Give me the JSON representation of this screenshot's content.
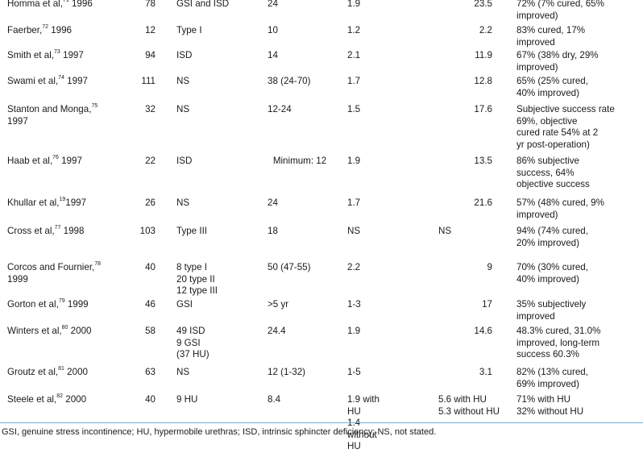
{
  "rows": [
    {
      "study": "Homma et al,",
      "ref": "71",
      "year": " 1996",
      "n": "78",
      "type": "GSI and ISD",
      "followup": "24",
      "mean1": "1.9",
      "mean2": "23.5",
      "outcome": "72% (7% cured, 65%\nimproved)"
    },
    {
      "study": "Faerber,",
      "ref": "72",
      "year": " 1996",
      "n": "12",
      "type": "Type I",
      "followup": "10",
      "mean1": "1.2",
      "mean2": "2.2",
      "outcome": "83% cured, 17%\nimproved"
    },
    {
      "study": "Smith et al,",
      "ref": "73",
      "year": " 1997",
      "n": "94",
      "type": "ISD",
      "followup": "14",
      "mean1": "2.1",
      "mean2": "11.9",
      "outcome": "67% (38% dry, 29%\nimproved)"
    },
    {
      "study": "Swami et al,",
      "ref": "74",
      "year": " 1997",
      "n": "111",
      "type": "NS",
      "followup": "38 (24-70)",
      "mean1": "1.7",
      "mean2": "12.8",
      "outcome": "65% (25% cured,\n40% improved)"
    },
    {
      "study": "Stanton and Monga,",
      "ref": "75",
      "year": "\n   1997",
      "n": "32",
      "type": "NS",
      "followup": "12-24",
      "mean1": "1.5",
      "mean2": "17.6",
      "outcome": "Subjective success rate\n69%, objective\ncured rate 54% at 2\nyr post-operation)"
    },
    {
      "study": "Haab et al,",
      "ref": "76",
      "year": " 1997",
      "n": "22",
      "type": "ISD",
      "followup": "Minimum: 12",
      "mean1": "1.9",
      "mean2": "13.5",
      "outcome": "86% subjective\nsuccess, 64%\nobjective success"
    },
    {
      "study": "Khullar et al,",
      "ref": "19",
      "year": "1997",
      "n": "26",
      "type": "NS",
      "followup": "24",
      "mean1": "1.7",
      "mean2": "21.6",
      "outcome": "57% (48% cured, 9%\nimproved)"
    },
    {
      "study": "Cross et al,",
      "ref": "77",
      "year": " 1998",
      "n": "103",
      "type": "Type III",
      "followup": "18",
      "mean1": "NS",
      "mean2": "NS",
      "outcome": "94% (74% cured,\n20% improved)"
    },
    {
      "study": "Corcos and Fournier,",
      "ref": "78",
      "year": "\n   1999",
      "n": "40",
      "type": " 8 type I\n20 type II\n12 type III",
      "followup": "50 (47-55)",
      "mean1": "2.2",
      "mean2": "9",
      "outcome": "70% (30% cured,\n40% improved)"
    },
    {
      "study": "Gorton et al,",
      "ref": "79",
      "year": " 1999",
      "n": "46",
      "type": "GSI",
      "followup": ">5 yr",
      "mean1": "1-3",
      "mean2": "17",
      "outcome": "35% subjectively\nimproved"
    },
    {
      "study": "Winters et al,",
      "ref": "80",
      "year": " 2000",
      "n": "58",
      "type": "49 ISD\n  9 GSI\n  (37 HU)",
      "followup": "24.4",
      "mean1": "1.9",
      "mean2": "14.6",
      "outcome": "48.3% cured, 31.0%\nimproved, long-term\nsuccess 60.3%"
    },
    {
      "study": "Groutz et al,",
      "ref": "81",
      "year": " 2000",
      "n": "63",
      "type": "NS",
      "followup": "12 (1-32)",
      "mean1": "1-5",
      "mean2": "3.1",
      "outcome": "82% (13% cured,\n69% improved)"
    },
    {
      "study": "Steele et al,",
      "ref": "82",
      "year": " 2000",
      "n": "40",
      "type": "  9 HU",
      "followup": "8.4",
      "mean1": "1.9 with HU\n1.4 without HU",
      "mean2": "5.6 with HU\n5.3 without HU",
      "outcome": "71% with HU\n32% without HU"
    }
  ],
  "footnote": "GSI, genuine stress incontinence; HU, hypermobile urethras; ISD, intrinsic sphincter deficiency; NS, not stated.",
  "colors": {
    "rule": "#6fb1d8",
    "text": "#1a1a1a"
  }
}
